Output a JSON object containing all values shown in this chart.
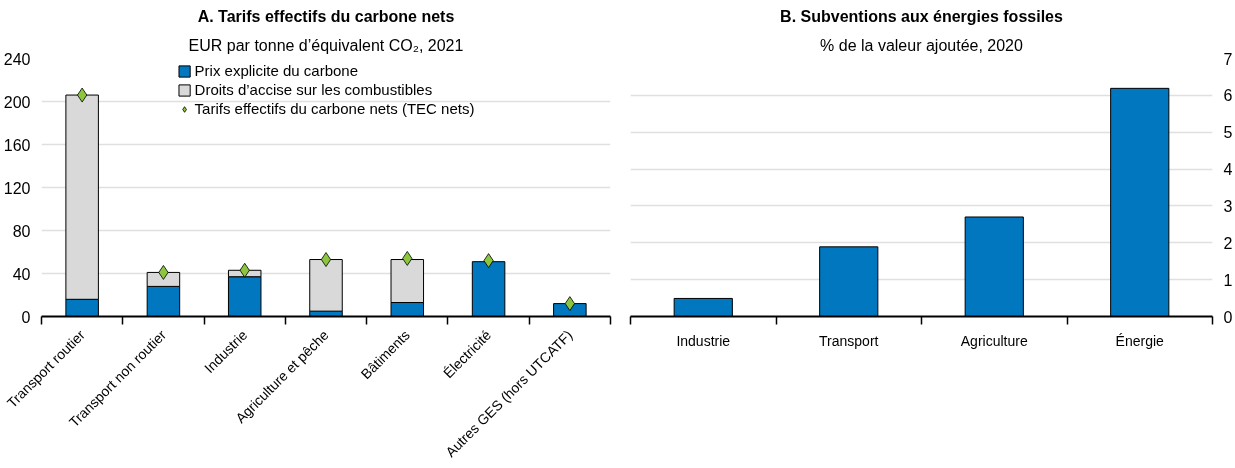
{
  "chart_data": [
    {
      "type": "bar",
      "title": "A. Tarifs effectifs du carbone nets",
      "subtitle": "EUR par tonne d’équivalent CO₂, 2021",
      "categories": [
        "Transport routier",
        "Transport non routier",
        "Industrie",
        "Agriculture et pêche",
        "Bâtiments",
        "Électricité",
        "Autres GES (hors UTCATF)"
      ],
      "stacked": true,
      "series": [
        {
          "name": "Prix explicite du carbone",
          "color": "#0077bf",
          "values": [
            16,
            28,
            37,
            5,
            13,
            51,
            12
          ]
        },
        {
          "name": "Droits d’accise sur les combustibles",
          "color": "#d9d9d9",
          "values": [
            190,
            13,
            6,
            48,
            40,
            null,
            null
          ]
        },
        {
          "name": "Tarifs effectifs du carbone nets (TEC nets)",
          "type": "scatter",
          "color": "#8cc63f",
          "marker": "diamond",
          "values": [
            206,
            41,
            43,
            53,
            54,
            52,
            12
          ]
        }
      ],
      "ylim": [
        0,
        240
      ],
      "yticks": [
        0,
        40,
        80,
        120,
        160,
        200,
        240
      ],
      "grid": "y",
      "legend": "top"
    },
    {
      "type": "bar",
      "title": "B. Subventions aux énergies fossiles",
      "subtitle": "% de la valeur ajoutée, 2020",
      "categories": [
        "Industrie",
        "Transport",
        "Agriculture",
        "Énergie"
      ],
      "series": [
        {
          "color": "#0077bf",
          "values": [
            0.49,
            1.89,
            2.7,
            6.19
          ],
          "axis": "y2"
        }
      ],
      "y2lim": [
        0,
        7
      ],
      "y2ticks": [
        0,
        1,
        2,
        3,
        4,
        5,
        6,
        7
      ],
      "grid": "y"
    }
  ]
}
